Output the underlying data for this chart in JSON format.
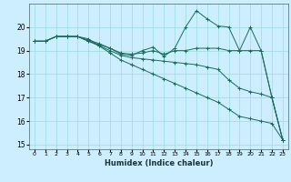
{
  "xlabel": "Humidex (Indice chaleur)",
  "bg_color": "#cceeff",
  "grid_color": "#99dddd",
  "line_color": "#1a6b5a",
  "xlim": [
    -0.5,
    23.5
  ],
  "ylim": [
    14.8,
    21.0
  ],
  "yticks": [
    15,
    16,
    17,
    18,
    19,
    20
  ],
  "xticks": [
    0,
    1,
    2,
    3,
    4,
    5,
    6,
    7,
    8,
    9,
    10,
    11,
    12,
    13,
    14,
    15,
    16,
    17,
    18,
    19,
    20,
    21,
    22,
    23
  ],
  "series": [
    {
      "x": [
        0,
        1,
        2,
        3,
        4,
        5,
        6,
        7,
        8,
        9,
        10,
        11,
        12,
        13,
        14,
        15,
        16,
        17,
        18,
        19,
        20,
        21,
        22,
        23
      ],
      "y": [
        19.4,
        19.4,
        19.6,
        19.6,
        19.6,
        19.5,
        19.2,
        18.9,
        18.6,
        18.4,
        18.2,
        18.0,
        17.8,
        17.6,
        17.4,
        17.2,
        17.0,
        16.8,
        16.5,
        16.2,
        16.1,
        16.0,
        15.9,
        15.2
      ]
    },
    {
      "x": [
        0,
        1,
        2,
        3,
        4,
        5,
        6,
        7,
        8,
        9,
        10,
        11,
        12,
        13,
        14,
        15,
        16,
        17,
        18,
        19,
        20,
        21,
        22,
        23
      ],
      "y": [
        19.4,
        19.4,
        19.6,
        19.6,
        19.6,
        19.4,
        19.25,
        19.1,
        18.85,
        18.8,
        19.0,
        19.15,
        18.75,
        19.1,
        20.0,
        20.7,
        20.35,
        20.05,
        20.0,
        19.0,
        20.0,
        19.0,
        17.0,
        15.2
      ]
    },
    {
      "x": [
        0,
        1,
        2,
        3,
        4,
        5,
        6,
        7,
        8,
        9,
        10,
        11,
        12,
        13,
        14,
        15,
        16,
        17,
        18,
        19,
        20,
        21,
        22,
        23
      ],
      "y": [
        19.4,
        19.4,
        19.6,
        19.6,
        19.6,
        19.45,
        19.3,
        19.1,
        18.9,
        18.85,
        18.9,
        19.0,
        18.85,
        19.0,
        19.0,
        19.1,
        19.1,
        19.1,
        19.0,
        19.0,
        19.0,
        19.0,
        17.0,
        15.2
      ]
    },
    {
      "x": [
        0,
        1,
        2,
        3,
        4,
        5,
        6,
        7,
        8,
        9,
        10,
        11,
        12,
        13,
        14,
        15,
        16,
        17,
        18,
        19,
        20,
        21,
        22,
        23
      ],
      "y": [
        19.4,
        19.4,
        19.6,
        19.6,
        19.6,
        19.4,
        19.2,
        19.0,
        18.8,
        18.7,
        18.65,
        18.6,
        18.55,
        18.5,
        18.45,
        18.4,
        18.3,
        18.2,
        17.75,
        17.4,
        17.25,
        17.15,
        17.0,
        15.2
      ]
    }
  ]
}
